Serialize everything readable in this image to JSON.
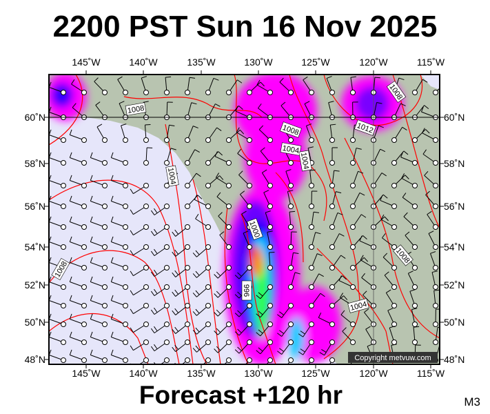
{
  "title": "2200 PST Sun 16 Nov 2025",
  "footer": "Forecast +120 hr",
  "model_label": "M3",
  "copyright": "Copyright metvuw.com",
  "lon_ticks": [
    "145˚W",
    "140˚W",
    "135˚W",
    "130˚W",
    "125˚W",
    "120˚W",
    "115˚W"
  ],
  "lat_ticks": [
    "60˚N",
    "58˚N",
    "56˚N",
    "54˚N",
    "52˚N",
    "50˚N",
    "48˚N"
  ],
  "isobar_labels": [
    "1008",
    "1008",
    "1012",
    "1008",
    "1004",
    "1004",
    "1004",
    "1000",
    "996",
    "1008",
    "1004",
    "1008"
  ],
  "colors": {
    "ocean": "#e6e6fa",
    "land": "#b8c4b0",
    "isobar": "#ff0000",
    "precip_light": "#ff00ff",
    "precip_mid": "#9900ff",
    "precip_heavy": "#0000ff"
  }
}
